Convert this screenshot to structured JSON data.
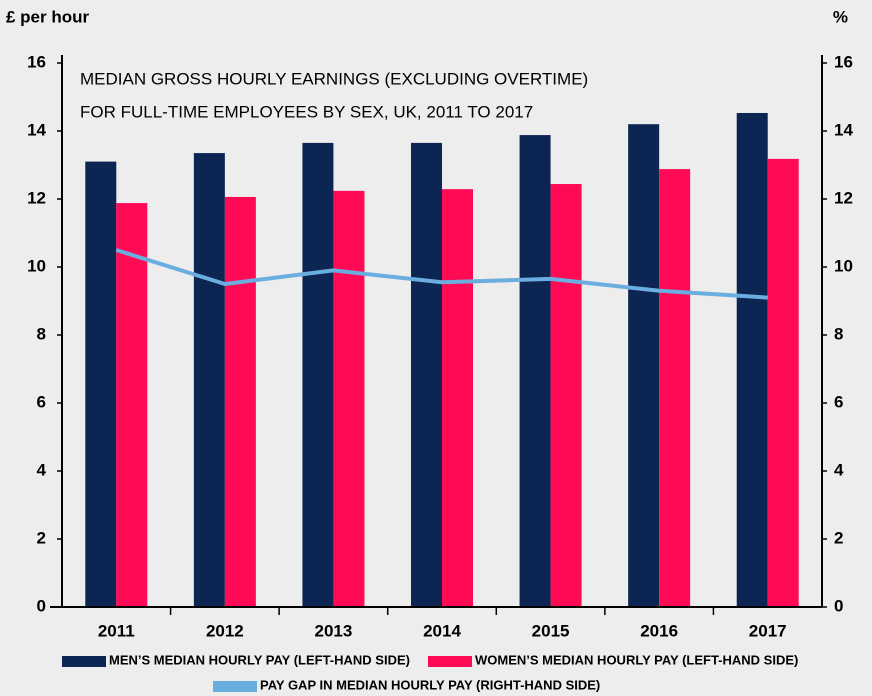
{
  "chart_data": {
    "type": "bar",
    "title": [
      "MEDIAN GROSS HOURLY EARNINGS (EXCLUDING OVERTIME)",
      "FOR FULL-TIME EMPLOYEES BY SEX, UK, 2011 TO 2017"
    ],
    "y_label": "£ per hour",
    "y2_label": "%",
    "categories": [
      "2011",
      "2012",
      "2013",
      "2014",
      "2015",
      "2016",
      "2017"
    ],
    "series": [
      {
        "name": "MEN’S MEDIAN HOURLY PAY (LEFT-HAND SIDE)",
        "type": "bar",
        "color": "#0c2553",
        "values": [
          13.1,
          13.35,
          13.65,
          13.65,
          13.88,
          14.2,
          14.53
        ]
      },
      {
        "name": "WOMEN’S MEDIAN HOURLY PAY (LEFT-HAND SIDE)",
        "type": "bar",
        "color": "#ff0a55",
        "values": [
          11.88,
          12.06,
          12.24,
          12.29,
          12.44,
          12.88,
          13.18
        ]
      },
      {
        "name": "PAY GAP IN MEDIAN HOURLY PAY (RIGHT-HAND SIDE)",
        "type": "line",
        "axis": "y2",
        "color": "#6aaee0",
        "values": [
          10.5,
          9.5,
          9.9,
          9.55,
          9.65,
          9.3,
          9.1
        ]
      }
    ],
    "ylim": [
      0,
      16
    ],
    "yticks": [
      0,
      2,
      4,
      6,
      8,
      10,
      12,
      14,
      16
    ],
    "y2lim": [
      0,
      16
    ],
    "y2ticks": [
      0,
      2,
      4,
      6,
      8,
      10,
      12,
      14,
      16
    ]
  }
}
